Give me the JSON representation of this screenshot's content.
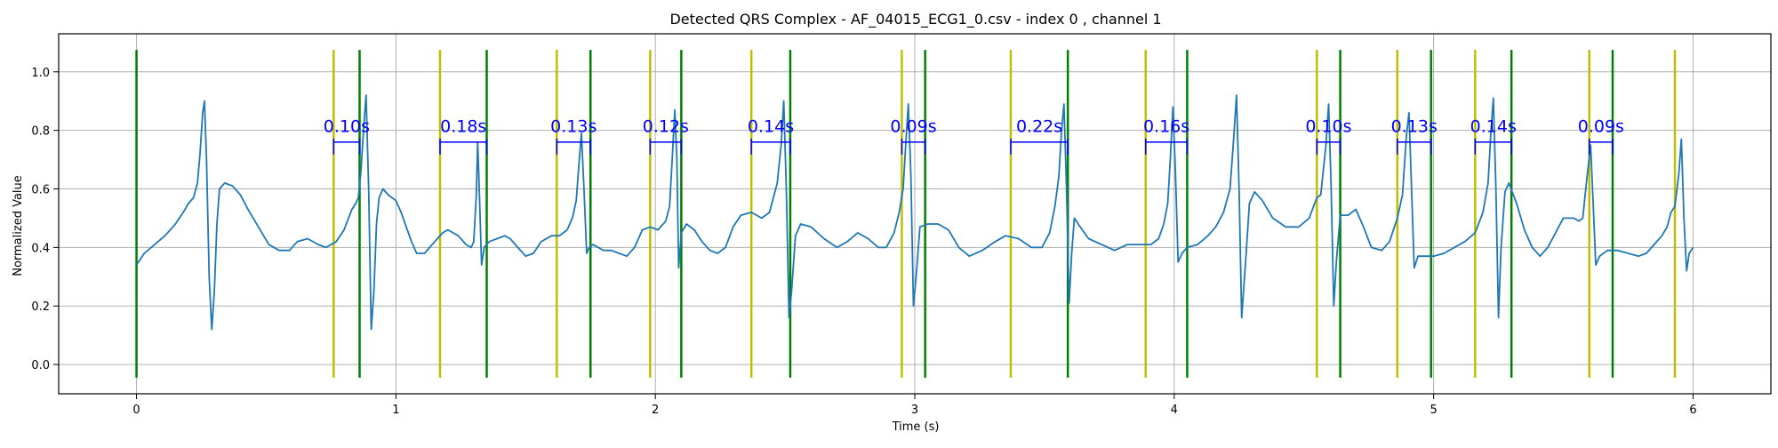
{
  "chart_data": {
    "type": "line",
    "title": "Detected QRS Complex - AF_04015_ECG1_0.csv - index 0 , channel 1",
    "xlabel": "Time (s)",
    "ylabel": "Normalized Value",
    "xlim": [
      -0.3,
      6.3
    ],
    "ylim": [
      -0.1,
      1.13
    ],
    "xticks": [
      0,
      1,
      2,
      3,
      4,
      5,
      6
    ],
    "yticks": [
      0.0,
      0.2,
      0.4,
      0.6,
      0.8,
      1.0
    ],
    "ytick_labels": [
      "0.0",
      "0.2",
      "0.4",
      "0.6",
      "0.8",
      "1.0"
    ],
    "grid": true,
    "colors": {
      "signal": "#1f77b4",
      "qrs_onset": "#bfbf00",
      "qrs_offset": "#008000",
      "duration": "#0000ff",
      "grid": "#b0b0b0"
    },
    "qrs_onset_lines": [
      0.76,
      1.17,
      1.62,
      1.98,
      2.37,
      2.95,
      3.37,
      3.89,
      4.55,
      4.86,
      5.16,
      5.6,
      5.93
    ],
    "qrs_offset_lines": [
      0.0,
      0.86,
      1.35,
      1.75,
      2.1,
      2.52,
      3.04,
      3.59,
      4.05,
      4.64,
      4.99,
      5.3,
      5.69
    ],
    "vline_ymin": -0.045,
    "vline_ymax": 1.075,
    "intervals": [
      {
        "start": 0.76,
        "end": 0.86,
        "label": "0.10s"
      },
      {
        "start": 1.17,
        "end": 1.35,
        "label": "0.18s"
      },
      {
        "start": 1.62,
        "end": 1.75,
        "label": "0.13s"
      },
      {
        "start": 1.98,
        "end": 2.1,
        "label": "0.12s"
      },
      {
        "start": 2.37,
        "end": 2.52,
        "label": "0.14s"
      },
      {
        "start": 2.95,
        "end": 3.04,
        "label": "0.09s"
      },
      {
        "start": 3.37,
        "end": 3.59,
        "label": "0.22s"
      },
      {
        "start": 3.89,
        "end": 4.05,
        "label": "0.16s"
      },
      {
        "start": 4.55,
        "end": 4.64,
        "label": "0.10s"
      },
      {
        "start": 4.86,
        "end": 4.99,
        "label": "0.13s"
      },
      {
        "start": 5.16,
        "end": 5.3,
        "label": "0.14s"
      },
      {
        "start": 5.6,
        "end": 5.69,
        "label": "0.09s"
      }
    ],
    "interval_bracket_y": 0.76,
    "interval_label_y": 0.795,
    "series": [
      {
        "points": [
          [
            0.0,
            0.34
          ],
          [
            0.03,
            0.38
          ],
          [
            0.07,
            0.41
          ],
          [
            0.11,
            0.44
          ],
          [
            0.15,
            0.48
          ],
          [
            0.18,
            0.52
          ],
          [
            0.2,
            0.55
          ],
          [
            0.22,
            0.57
          ],
          [
            0.235,
            0.62
          ],
          [
            0.245,
            0.72
          ],
          [
            0.255,
            0.86
          ],
          [
            0.262,
            0.9
          ],
          [
            0.27,
            0.7
          ],
          [
            0.28,
            0.3
          ],
          [
            0.29,
            0.12
          ],
          [
            0.3,
            0.25
          ],
          [
            0.31,
            0.48
          ],
          [
            0.32,
            0.6
          ],
          [
            0.34,
            0.62
          ],
          [
            0.37,
            0.61
          ],
          [
            0.4,
            0.58
          ],
          [
            0.43,
            0.53
          ],
          [
            0.47,
            0.47
          ],
          [
            0.51,
            0.41
          ],
          [
            0.55,
            0.39
          ],
          [
            0.59,
            0.39
          ],
          [
            0.62,
            0.42
          ],
          [
            0.66,
            0.43
          ],
          [
            0.7,
            0.41
          ],
          [
            0.73,
            0.4
          ],
          [
            0.77,
            0.42
          ],
          [
            0.8,
            0.46
          ],
          [
            0.83,
            0.53
          ],
          [
            0.845,
            0.55
          ],
          [
            0.855,
            0.57
          ],
          [
            0.865,
            0.66
          ],
          [
            0.875,
            0.8
          ],
          [
            0.885,
            0.92
          ],
          [
            0.895,
            0.6
          ],
          [
            0.905,
            0.12
          ],
          [
            0.915,
            0.25
          ],
          [
            0.925,
            0.48
          ],
          [
            0.935,
            0.57
          ],
          [
            0.95,
            0.6
          ],
          [
            0.97,
            0.58
          ],
          [
            1.0,
            0.56
          ],
          [
            1.02,
            0.52
          ],
          [
            1.04,
            0.47
          ],
          [
            1.06,
            0.42
          ],
          [
            1.08,
            0.38
          ],
          [
            1.11,
            0.38
          ],
          [
            1.15,
            0.42
          ],
          [
            1.18,
            0.45
          ],
          [
            1.2,
            0.46
          ],
          [
            1.24,
            0.44
          ],
          [
            1.27,
            0.41
          ],
          [
            1.29,
            0.4
          ],
          [
            1.3,
            0.42
          ],
          [
            1.31,
            0.58
          ],
          [
            1.315,
            0.76
          ],
          [
            1.322,
            0.58
          ],
          [
            1.33,
            0.34
          ],
          [
            1.34,
            0.4
          ],
          [
            1.36,
            0.42
          ],
          [
            1.39,
            0.43
          ],
          [
            1.42,
            0.44
          ],
          [
            1.44,
            0.43
          ],
          [
            1.47,
            0.4
          ],
          [
            1.5,
            0.37
          ],
          [
            1.53,
            0.38
          ],
          [
            1.56,
            0.42
          ],
          [
            1.6,
            0.44
          ],
          [
            1.63,
            0.44
          ],
          [
            1.66,
            0.46
          ],
          [
            1.68,
            0.5
          ],
          [
            1.695,
            0.56
          ],
          [
            1.705,
            0.68
          ],
          [
            1.715,
            0.79
          ],
          [
            1.725,
            0.6
          ],
          [
            1.735,
            0.38
          ],
          [
            1.745,
            0.4
          ],
          [
            1.76,
            0.41
          ],
          [
            1.8,
            0.39
          ],
          [
            1.83,
            0.39
          ],
          [
            1.86,
            0.38
          ],
          [
            1.89,
            0.37
          ],
          [
            1.92,
            0.4
          ],
          [
            1.95,
            0.46
          ],
          [
            1.98,
            0.47
          ],
          [
            2.01,
            0.46
          ],
          [
            2.04,
            0.49
          ],
          [
            2.055,
            0.54
          ],
          [
            2.065,
            0.7
          ],
          [
            2.075,
            0.87
          ],
          [
            2.083,
            0.7
          ],
          [
            2.09,
            0.33
          ],
          [
            2.1,
            0.45
          ],
          [
            2.12,
            0.48
          ],
          [
            2.15,
            0.46
          ],
          [
            2.18,
            0.42
          ],
          [
            2.21,
            0.39
          ],
          [
            2.24,
            0.38
          ],
          [
            2.27,
            0.4
          ],
          [
            2.3,
            0.47
          ],
          [
            2.33,
            0.51
          ],
          [
            2.37,
            0.52
          ],
          [
            2.41,
            0.5
          ],
          [
            2.44,
            0.52
          ],
          [
            2.47,
            0.62
          ],
          [
            2.485,
            0.75
          ],
          [
            2.495,
            0.9
          ],
          [
            2.505,
            0.6
          ],
          [
            2.515,
            0.16
          ],
          [
            2.525,
            0.25
          ],
          [
            2.54,
            0.44
          ],
          [
            2.56,
            0.48
          ],
          [
            2.6,
            0.47
          ],
          [
            2.65,
            0.43
          ],
          [
            2.7,
            0.4
          ],
          [
            2.74,
            0.42
          ],
          [
            2.78,
            0.45
          ],
          [
            2.82,
            0.43
          ],
          [
            2.86,
            0.4
          ],
          [
            2.89,
            0.4
          ],
          [
            2.92,
            0.45
          ],
          [
            2.94,
            0.52
          ],
          [
            2.955,
            0.6
          ],
          [
            2.965,
            0.75
          ],
          [
            2.975,
            0.89
          ],
          [
            2.985,
            0.65
          ],
          [
            2.995,
            0.2
          ],
          [
            3.005,
            0.3
          ],
          [
            3.02,
            0.47
          ],
          [
            3.05,
            0.48
          ],
          [
            3.09,
            0.48
          ],
          [
            3.13,
            0.46
          ],
          [
            3.17,
            0.4
          ],
          [
            3.21,
            0.37
          ],
          [
            3.26,
            0.39
          ],
          [
            3.31,
            0.42
          ],
          [
            3.35,
            0.44
          ],
          [
            3.4,
            0.43
          ],
          [
            3.45,
            0.4
          ],
          [
            3.49,
            0.4
          ],
          [
            3.52,
            0.45
          ],
          [
            3.54,
            0.54
          ],
          [
            3.555,
            0.64
          ],
          [
            3.565,
            0.79
          ],
          [
            3.575,
            0.89
          ],
          [
            3.585,
            0.6
          ],
          [
            3.595,
            0.21
          ],
          [
            3.605,
            0.38
          ],
          [
            3.615,
            0.5
          ],
          [
            3.63,
            0.48
          ],
          [
            3.67,
            0.43
          ],
          [
            3.72,
            0.41
          ],
          [
            3.77,
            0.39
          ],
          [
            3.82,
            0.41
          ],
          [
            3.87,
            0.41
          ],
          [
            3.91,
            0.41
          ],
          [
            3.94,
            0.43
          ],
          [
            3.96,
            0.48
          ],
          [
            3.975,
            0.55
          ],
          [
            3.985,
            0.7
          ],
          [
            3.995,
            0.88
          ],
          [
            4.005,
            0.65
          ],
          [
            4.015,
            0.35
          ],
          [
            4.03,
            0.38
          ],
          [
            4.05,
            0.4
          ],
          [
            4.09,
            0.41
          ],
          [
            4.13,
            0.44
          ],
          [
            4.16,
            0.47
          ],
          [
            4.19,
            0.52
          ],
          [
            4.215,
            0.6
          ],
          [
            4.23,
            0.78
          ],
          [
            4.24,
            0.92
          ],
          [
            4.25,
            0.6
          ],
          [
            4.26,
            0.16
          ],
          [
            4.275,
            0.35
          ],
          [
            4.29,
            0.55
          ],
          [
            4.31,
            0.59
          ],
          [
            4.34,
            0.56
          ],
          [
            4.38,
            0.5
          ],
          [
            4.43,
            0.47
          ],
          [
            4.48,
            0.47
          ],
          [
            4.52,
            0.5
          ],
          [
            4.55,
            0.57
          ],
          [
            4.565,
            0.58
          ],
          [
            4.585,
            0.75
          ],
          [
            4.595,
            0.89
          ],
          [
            4.605,
            0.6
          ],
          [
            4.615,
            0.2
          ],
          [
            4.625,
            0.35
          ],
          [
            4.64,
            0.51
          ],
          [
            4.67,
            0.51
          ],
          [
            4.7,
            0.53
          ],
          [
            4.73,
            0.47
          ],
          [
            4.76,
            0.4
          ],
          [
            4.8,
            0.39
          ],
          [
            4.83,
            0.42
          ],
          [
            4.86,
            0.5
          ],
          [
            4.88,
            0.58
          ],
          [
            4.895,
            0.78
          ],
          [
            4.905,
            0.86
          ],
          [
            4.915,
            0.6
          ],
          [
            4.925,
            0.33
          ],
          [
            4.94,
            0.37
          ],
          [
            4.97,
            0.37
          ],
          [
            5.0,
            0.37
          ],
          [
            5.04,
            0.38
          ],
          [
            5.08,
            0.4
          ],
          [
            5.12,
            0.42
          ],
          [
            5.16,
            0.45
          ],
          [
            5.19,
            0.52
          ],
          [
            5.21,
            0.62
          ],
          [
            5.22,
            0.78
          ],
          [
            5.23,
            0.91
          ],
          [
            5.24,
            0.6
          ],
          [
            5.25,
            0.16
          ],
          [
            5.26,
            0.4
          ],
          [
            5.275,
            0.59
          ],
          [
            5.29,
            0.62
          ],
          [
            5.32,
            0.55
          ],
          [
            5.35,
            0.46
          ],
          [
            5.38,
            0.4
          ],
          [
            5.41,
            0.37
          ],
          [
            5.44,
            0.4
          ],
          [
            5.47,
            0.45
          ],
          [
            5.5,
            0.5
          ],
          [
            5.54,
            0.5
          ],
          [
            5.56,
            0.49
          ],
          [
            5.575,
            0.5
          ],
          [
            5.59,
            0.63
          ],
          [
            5.605,
            0.75
          ],
          [
            5.615,
            0.55
          ],
          [
            5.625,
            0.34
          ],
          [
            5.64,
            0.37
          ],
          [
            5.67,
            0.39
          ],
          [
            5.71,
            0.39
          ],
          [
            5.75,
            0.38
          ],
          [
            5.79,
            0.37
          ],
          [
            5.82,
            0.38
          ],
          [
            5.85,
            0.41
          ],
          [
            5.88,
            0.44
          ],
          [
            5.9,
            0.47
          ],
          [
            5.915,
            0.52
          ],
          [
            5.93,
            0.54
          ],
          [
            5.945,
            0.65
          ],
          [
            5.955,
            0.77
          ],
          [
            5.965,
            0.5
          ],
          [
            5.975,
            0.32
          ],
          [
            5.985,
            0.38
          ],
          [
            6.0,
            0.4
          ]
        ]
      }
    ]
  }
}
